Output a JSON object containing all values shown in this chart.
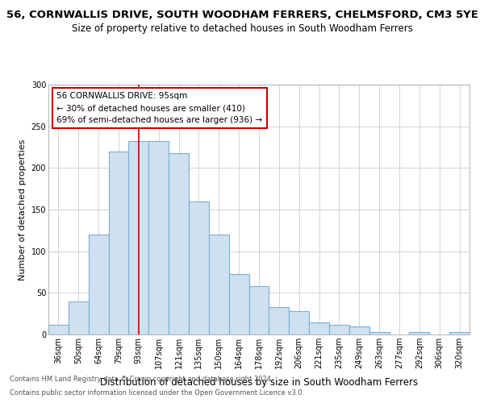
{
  "title": "56, CORNWALLIS DRIVE, SOUTH WOODHAM FERRERS, CHELMSFORD, CM3 5YE",
  "subtitle": "Size of property relative to detached houses in South Woodham Ferrers",
  "xlabel": "Distribution of detached houses by size in South Woodham Ferrers",
  "ylabel": "Number of detached properties",
  "categories": [
    "36sqm",
    "50sqm",
    "64sqm",
    "79sqm",
    "93sqm",
    "107sqm",
    "121sqm",
    "135sqm",
    "150sqm",
    "164sqm",
    "178sqm",
    "192sqm",
    "206sqm",
    "221sqm",
    "235sqm",
    "249sqm",
    "263sqm",
    "277sqm",
    "292sqm",
    "306sqm",
    "320sqm"
  ],
  "values": [
    12,
    40,
    120,
    220,
    232,
    232,
    218,
    160,
    120,
    73,
    58,
    33,
    28,
    15,
    12,
    10,
    3,
    0,
    3,
    0,
    3
  ],
  "bar_color": "#cfe0f0",
  "bar_edge_color": "#7bafd4",
  "vline_x_category": "93sqm",
  "vline_color": "#cc0000",
  "annotation_text": "56 CORNWALLIS DRIVE: 95sqm\n← 30% of detached houses are smaller (410)\n69% of semi-detached houses are larger (936) →",
  "annotation_box_color": "#ffffff",
  "annotation_box_edge": "#cc0000",
  "ylim": [
    0,
    300
  ],
  "yticks": [
    0,
    50,
    100,
    150,
    200,
    250,
    300
  ],
  "footer1": "Contains HM Land Registry data © Crown copyright and database right 2024.",
  "footer2": "Contains public sector information licensed under the Open Government Licence v3.0.",
  "bg_color": "#ffffff",
  "grid_color": "#cccccc",
  "title_fontsize": 9.5,
  "subtitle_fontsize": 8.5,
  "xlabel_fontsize": 8.5,
  "ylabel_fontsize": 8,
  "tick_fontsize": 7,
  "annotation_fontsize": 7.5,
  "footer_fontsize": 6
}
